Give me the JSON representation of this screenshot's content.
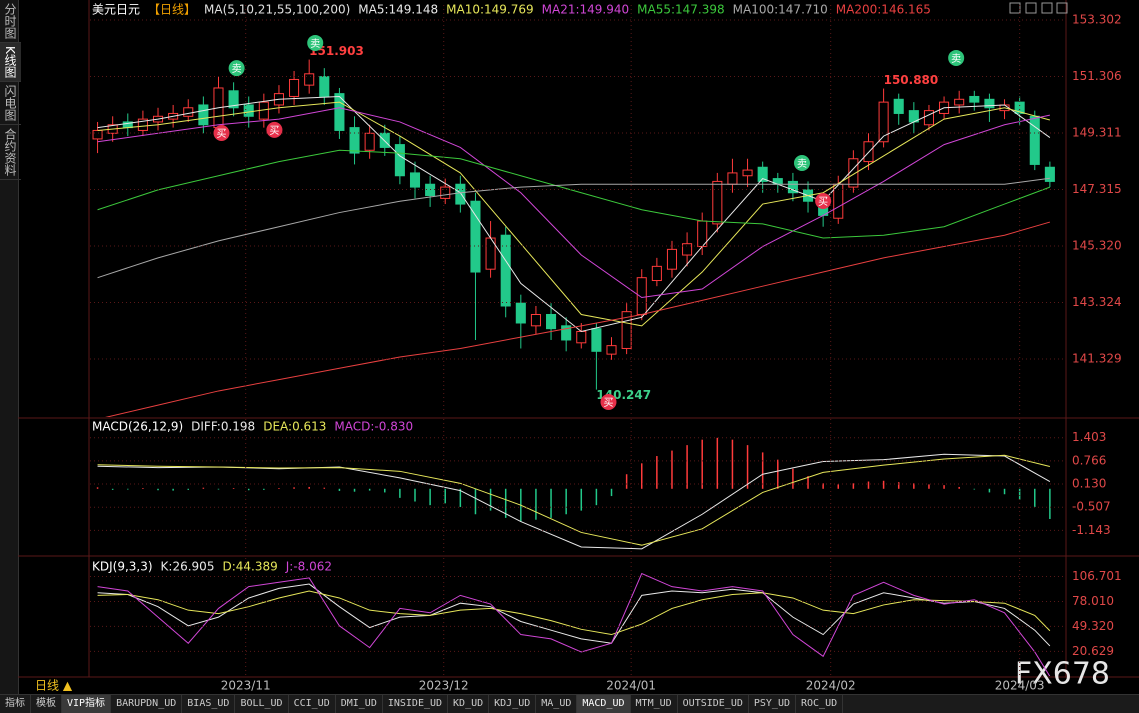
{
  "chart_data": [
    {
      "type": "candlestick",
      "title": "美元日元",
      "period": "【日线】",
      "subtitle": "MA(5,10,21,55,100,200)",
      "xlim": [
        -0.5,
        64
      ],
      "xticks": [
        {
          "value": 9.8,
          "label": "2023/11"
        },
        {
          "value": 22.9,
          "label": "2023/12"
        },
        {
          "value": 35.3,
          "label": "2024/01"
        },
        {
          "value": 48.5,
          "label": "2024/02"
        },
        {
          "value": 61,
          "label": "2024/03"
        }
      ],
      "ylim": [
        139.28,
        153.83
      ],
      "yticks": [
        153.302,
        151.306,
        149.311,
        147.315,
        {
          "value": 145.32,
          "label": "145.320"
        },
        143.324,
        141.329
      ],
      "up_color": "#ff3b3b",
      "down_color": "#22c98a",
      "open": [
        149.1,
        149.3,
        149.7,
        149.4,
        149.7,
        149.8,
        149.9,
        150.3,
        149.5,
        150.8,
        150.3,
        149.8,
        150.3,
        150.6,
        151.0,
        151.3,
        150.7,
        149.5,
        148.7,
        149.3,
        148.9,
        147.9,
        147.5,
        147.0,
        147.5,
        146.9,
        144.5,
        145.7,
        143.3,
        142.5,
        142.9,
        142.5,
        141.9,
        142.4,
        141.5,
        141.7,
        142.9,
        144.1,
        144.5,
        145.0,
        145.3,
        146.1,
        147.5,
        147.8,
        148.1,
        147.7,
        147.6,
        147.3,
        147.0,
        146.3,
        147.4,
        148.3,
        149.0,
        150.5,
        150.1,
        149.6,
        150.0,
        150.3,
        150.6,
        150.5,
        150.1,
        150.4,
        149.9,
        148.1
      ],
      "high": [
        149.7,
        149.9,
        150.0,
        150.1,
        150.2,
        150.3,
        150.5,
        150.6,
        151.3,
        151.1,
        150.6,
        150.7,
        151.0,
        151.5,
        151.903,
        151.6,
        150.9,
        149.9,
        149.6,
        149.6,
        149.2,
        148.3,
        147.8,
        147.7,
        147.8,
        147.2,
        146.2,
        146.0,
        143.6,
        143.2,
        143.3,
        142.8,
        142.6,
        142.6,
        142.1,
        143.3,
        144.5,
        144.9,
        145.5,
        145.8,
        146.5,
        147.9,
        148.4,
        148.4,
        148.3,
        147.9,
        147.9,
        147.6,
        147.2,
        147.8,
        148.7,
        149.3,
        150.88,
        150.7,
        150.4,
        150.3,
        150.6,
        150.8,
        150.8,
        150.7,
        150.5,
        150.6,
        150.1,
        148.3
      ],
      "low": [
        148.6,
        149.0,
        149.2,
        149.2,
        149.4,
        149.5,
        149.7,
        149.3,
        149.2,
        149.9,
        149.5,
        149.5,
        150.0,
        150.3,
        150.7,
        150.3,
        149.1,
        148.2,
        148.4,
        148.5,
        147.5,
        147.0,
        146.7,
        146.8,
        146.5,
        142.0,
        144.2,
        142.8,
        141.7,
        142.2,
        142.0,
        141.6,
        141.7,
        140.247,
        141.3,
        141.5,
        142.7,
        143.9,
        144.2,
        144.6,
        145.0,
        145.8,
        147.2,
        147.4,
        147.2,
        147.2,
        146.9,
        146.5,
        146.0,
        146.1,
        147.2,
        148.0,
        148.8,
        149.6,
        149.3,
        149.4,
        149.8,
        150.0,
        150.1,
        149.7,
        149.8,
        149.6,
        148.0,
        147.4
      ],
      "close": [
        149.4,
        149.6,
        149.5,
        149.8,
        149.9,
        150.0,
        150.2,
        149.6,
        150.9,
        150.2,
        149.9,
        150.4,
        150.7,
        151.2,
        151.4,
        150.6,
        149.4,
        148.6,
        149.3,
        148.8,
        147.8,
        147.4,
        147.1,
        147.4,
        146.8,
        144.4,
        145.6,
        143.2,
        142.6,
        142.9,
        142.4,
        142.0,
        142.3,
        141.6,
        141.8,
        143.0,
        144.2,
        144.6,
        145.2,
        145.4,
        146.2,
        147.6,
        147.9,
        148.0,
        147.6,
        147.5,
        147.2,
        146.9,
        146.4,
        147.5,
        148.4,
        149.0,
        150.4,
        150.0,
        149.7,
        150.1,
        150.4,
        150.5,
        150.4,
        150.2,
        150.3,
        150.0,
        148.2,
        147.6
      ],
      "ma_x": [
        0,
        4,
        8,
        12,
        16,
        20,
        24,
        28,
        32,
        36,
        40,
        44,
        48,
        52,
        56,
        60,
        63
      ],
      "series": [
        {
          "name": "MA5:149.148",
          "color": "#e8e8e8",
          "values": [
            149.5,
            149.8,
            150.2,
            150.5,
            150.6,
            148.5,
            147.2,
            144,
            142.3,
            142.8,
            145.3,
            147.7,
            146.9,
            149.2,
            150.2,
            150.3,
            149.148
          ]
        },
        {
          "name": "MA10:149.769",
          "color": "#e6e65a",
          "values": [
            149.4,
            149.6,
            149.9,
            150.2,
            150.4,
            149.2,
            147.9,
            145.4,
            142.9,
            142.5,
            144.4,
            146.8,
            147.2,
            148.5,
            149.8,
            150.2,
            149.769
          ]
        },
        {
          "name": "MA21:149.940",
          "color": "#d046d6",
          "values": [
            149.0,
            149.3,
            149.6,
            149.8,
            150.2,
            149.7,
            148.8,
            147.2,
            145.0,
            143.5,
            143.8,
            145.3,
            146.4,
            147.6,
            148.9,
            149.6,
            149.94
          ]
        },
        {
          "name": "MA55:147.398",
          "color": "#3cc83c",
          "values": [
            146.6,
            147.3,
            147.8,
            148.3,
            148.7,
            148.6,
            148.4,
            147.8,
            147.2,
            146.6,
            146.2,
            146.1,
            145.6,
            145.7,
            146.0,
            146.8,
            147.398
          ]
        },
        {
          "name": "MA100:147.710",
          "color": "#a8a8a8",
          "values": [
            144.2,
            144.9,
            145.5,
            146.0,
            146.5,
            146.9,
            147.2,
            147.4,
            147.5,
            147.5,
            147.5,
            147.5,
            147.5,
            147.5,
            147.5,
            147.5,
            147.71
          ]
        },
        {
          "name": "MA200:146.165",
          "color": "#e84040",
          "values": [
            139.2,
            139.7,
            140.2,
            140.6,
            141.0,
            141.4,
            141.7,
            142.1,
            142.5,
            142.9,
            143.4,
            143.9,
            144.4,
            144.9,
            145.3,
            145.7,
            146.165
          ]
        }
      ],
      "extremes": [
        {
          "index": 14,
          "value": 151.903,
          "label": "151.903"
        },
        {
          "index": 52,
          "value": 150.88,
          "label": "150.880"
        },
        {
          "index": 33,
          "value": 140.247,
          "label": "140.247"
        }
      ],
      "signals": [
        {
          "label": "卖",
          "x": 9.2,
          "y": 151.6,
          "color": "#2ec47a"
        },
        {
          "label": "卖",
          "x": 14.4,
          "y": 152.49,
          "color": "#2ec47a"
        },
        {
          "label": "卖",
          "x": 46.6,
          "y": 148.25,
          "color": "#2ec47a"
        },
        {
          "label": "卖",
          "x": 56.8,
          "y": 151.96,
          "color": "#2ec47a"
        },
        {
          "label": "买",
          "x": 8.2,
          "y": 149.31,
          "color": "#e6304a"
        },
        {
          "label": "买",
          "x": 11.7,
          "y": 149.42,
          "color": "#e6304a"
        },
        {
          "label": "买",
          "x": 33.8,
          "y": 139.81,
          "color": "#e6304a"
        },
        {
          "label": "买",
          "x": 48.0,
          "y": 146.91,
          "color": "#e6304a"
        }
      ]
    },
    {
      "type": "macd",
      "title": "MACD(26,12,9)",
      "xlim": [
        -0.5,
        64
      ],
      "ylim": [
        -1.82,
        1.918
      ],
      "yticks": [
        1.403,
        0.766,
        {
          "value": 0.13,
          "label": "0.130"
        },
        -0.507,
        -1.143
      ],
      "x": [
        0,
        4,
        8,
        12,
        16,
        20,
        24,
        28,
        32,
        36,
        40,
        44,
        48,
        52,
        56,
        60,
        63
      ],
      "series": [
        {
          "name": "DIFF:0.198",
          "color": "#e8e8e8",
          "values": [
            0.62,
            0.58,
            0.6,
            0.55,
            0.6,
            0.3,
            -0.05,
            -0.9,
            -1.6,
            -1.65,
            -0.7,
            0.4,
            0.75,
            0.8,
            0.95,
            0.9,
            0.198
          ]
        },
        {
          "name": "DEA:0.613",
          "color": "#e6e65a",
          "values": [
            0.66,
            0.62,
            0.6,
            0.57,
            0.58,
            0.48,
            0.15,
            -0.45,
            -1.2,
            -1.55,
            -1.1,
            -0.1,
            0.45,
            0.65,
            0.82,
            0.92,
            0.613
          ]
        }
      ],
      "histogram": {
        "name": "MACD:-0.830",
        "color": "#d046d6",
        "up_color": "#ff3b3b",
        "down_color": "#22c98a",
        "values": [
          0.04,
          -0.03,
          -0.02,
          0.02,
          -0.04,
          -0.05,
          -0.03,
          0.03,
          -0.02,
          0.02,
          -0.04,
          -0.03,
          0.02,
          0.04,
          0.05,
          0.03,
          -0.06,
          -0.08,
          -0.05,
          -0.1,
          -0.25,
          -0.35,
          -0.45,
          -0.4,
          -0.5,
          -0.7,
          -0.6,
          -0.8,
          -0.9,
          -0.85,
          -0.8,
          -0.7,
          -0.6,
          -0.45,
          -0.2,
          0.4,
          0.7,
          0.9,
          1.05,
          1.2,
          1.35,
          1.4,
          1.35,
          1.2,
          1.0,
          0.8,
          0.55,
          0.35,
          0.15,
          0.12,
          0.15,
          0.2,
          0.22,
          0.18,
          0.15,
          0.12,
          0.1,
          0.05,
          -0.02,
          -0.1,
          -0.15,
          -0.3,
          -0.5,
          -0.83
        ]
      }
    },
    {
      "type": "kdj",
      "title": "KDJ(9,3,3)",
      "xlim": [
        -0.5,
        64
      ],
      "ylim": [
        -7.6,
        127.9
      ],
      "yticks": [
        106.701,
        {
          "value": 78.01,
          "label": "78.010"
        },
        {
          "value": 49.32,
          "label": "49.320"
        },
        20.629
      ],
      "x": [
        0,
        2,
        4,
        6,
        8,
        10,
        12,
        14,
        16,
        18,
        20,
        22,
        24,
        26,
        28,
        30,
        32,
        34,
        36,
        38,
        40,
        42,
        44,
        46,
        48,
        50,
        52,
        54,
        56,
        58,
        60,
        62,
        63
      ],
      "series": [
        {
          "name": "K:26.905",
          "color": "#e8e8e8",
          "values": [
            88,
            86,
            72,
            50,
            60,
            82,
            93,
            98,
            72,
            48,
            60,
            62,
            76,
            72,
            55,
            45,
            35,
            30,
            85,
            90,
            88,
            92,
            88,
            60,
            40,
            75,
            88,
            82,
            76,
            78,
            70,
            45,
            26.905
          ]
        },
        {
          "name": "D:44.389",
          "color": "#e6e65a",
          "values": [
            85,
            86,
            80,
            68,
            64,
            72,
            82,
            90,
            82,
            68,
            64,
            62,
            68,
            70,
            64,
            56,
            46,
            40,
            52,
            70,
            80,
            86,
            88,
            82,
            68,
            64,
            74,
            80,
            79,
            78,
            76,
            62,
            44.389
          ]
        },
        {
          "name": "J:-8.062",
          "color": "#d046d6",
          "values": [
            95,
            90,
            60,
            30,
            70,
            95,
            100,
            105,
            50,
            25,
            70,
            65,
            85,
            75,
            40,
            35,
            20,
            30,
            110,
            95,
            90,
            95,
            90,
            40,
            15,
            85,
            100,
            85,
            75,
            80,
            65,
            20,
            -8.062
          ]
        }
      ]
    }
  ],
  "sidebar": [
    "分时图",
    "K线图",
    "闪电图",
    "合约资料"
  ],
  "period_button": "日线 ▲",
  "toolbar": [
    "指标",
    "模板",
    "VIP指标",
    "BARUPDN_UD",
    "BIAS_UD",
    "BOLL_UD",
    "CCI_UD",
    "DMI_UD",
    "INSIDE_UD",
    "KD_UD",
    "KDJ_UD",
    "MA_UD",
    "MACD_UD",
    "MTM_UD",
    "OUTSIDE_UD",
    "PSY_UD",
    "ROC_UD"
  ],
  "watermark": "FX678"
}
